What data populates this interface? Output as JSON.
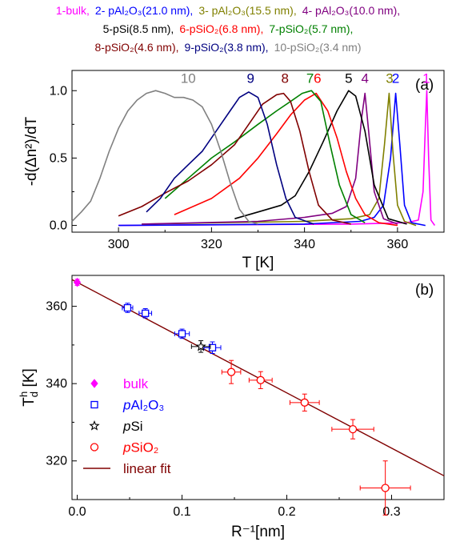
{
  "legend": {
    "lines": [
      [
        {
          "id": "1",
          "label": "1-bulk,",
          "color": "#ff00ff"
        },
        {
          "id": "2",
          "label": "2- pAl₂O₃(21.0 nm),",
          "color": "#0000ff"
        },
        {
          "id": "3",
          "label": "3- pAl₂O₃(15.5 nm),",
          "color": "#808000"
        },
        {
          "id": "4",
          "label": "4- pAl₂O₃(10.0 nm),",
          "color": "#800080"
        }
      ],
      [
        {
          "id": "5",
          "label": "5-pSi(8.5 nm),",
          "color": "#000000"
        },
        {
          "id": "6",
          "label": "6-pSiO₂(6.8 nm),",
          "color": "#ff0000"
        },
        {
          "id": "7",
          "label": "7-pSiO₂(5.7 nm),",
          "color": "#008000"
        }
      ],
      [
        {
          "id": "8",
          "label": "8-pSiO₂(4.6 nm),",
          "color": "#800000"
        },
        {
          "id": "9",
          "label": "9-pSiO₂(3.8 nm),",
          "color": "#000080"
        },
        {
          "id": "10",
          "label": "10-pSiO₂(3.4 nm)",
          "color": "#808080"
        }
      ]
    ]
  },
  "chart_data": [
    {
      "type": "line",
      "panel_label": "(a)",
      "xlabel": "T [K]",
      "ylabel": "-d(Δn²)/dT",
      "xlim": [
        290,
        370
      ],
      "ylim": [
        -0.05,
        1.15
      ],
      "xticks": [
        300,
        320,
        340,
        360
      ],
      "yticks": [
        0.0,
        0.5,
        1.0
      ],
      "series": [
        {
          "name": "1",
          "color": "#ff00ff",
          "peak_label_x": 366.2,
          "x": [
            300,
            350,
            362,
            364.5,
            365.5,
            366,
            366.3,
            366.7,
            367.2,
            368
          ],
          "y": [
            0.0,
            0.01,
            0.02,
            0.04,
            0.25,
            0.75,
            1.0,
            0.5,
            0.04,
            0.0
          ]
        },
        {
          "name": "2",
          "color": "#0000ff",
          "peak_label_x": 359.6,
          "x": [
            300,
            340,
            352,
            355,
            357,
            358.5,
            359.6,
            360.5,
            361.5,
            363,
            366
          ],
          "y": [
            0.0,
            0.01,
            0.03,
            0.06,
            0.15,
            0.5,
            0.98,
            0.6,
            0.15,
            0.02,
            0.0
          ]
        },
        {
          "name": "3",
          "color": "#808000",
          "peak_label_x": 358.3,
          "x": [
            305,
            340,
            350,
            354,
            356,
            357.2,
            358.2,
            359,
            360,
            361.5,
            364
          ],
          "y": [
            0.01,
            0.03,
            0.05,
            0.08,
            0.2,
            0.6,
            0.98,
            0.55,
            0.15,
            0.03,
            0.0
          ]
        },
        {
          "name": "4",
          "color": "#800080",
          "peak_label_x": 353.0,
          "x": [
            305,
            330,
            340,
            346,
            349,
            351,
            352.3,
            353,
            353.8,
            355,
            357,
            360
          ],
          "y": [
            0.01,
            0.03,
            0.06,
            0.09,
            0.14,
            0.35,
            0.8,
            0.98,
            0.7,
            0.25,
            0.05,
            0.01
          ]
        },
        {
          "name": "5",
          "color": "#000000",
          "peak_label_x": 349.5,
          "x": [
            325,
            330,
            335,
            338,
            341,
            344,
            347,
            349.5,
            351,
            353,
            355,
            358,
            362
          ],
          "y": [
            0.05,
            0.1,
            0.15,
            0.22,
            0.4,
            0.62,
            0.85,
            1.0,
            0.96,
            0.7,
            0.3,
            0.05,
            0.01
          ]
        },
        {
          "name": "6",
          "color": "#ff0000",
          "peak_label_x": 342.8,
          "x": [
            312,
            320,
            326,
            330,
            334,
            337,
            340,
            342.5,
            345,
            347,
            349,
            351,
            353,
            356,
            360
          ],
          "y": [
            0.08,
            0.2,
            0.35,
            0.5,
            0.68,
            0.82,
            0.93,
            0.98,
            0.85,
            0.65,
            0.4,
            0.2,
            0.08,
            0.02,
            0.0
          ]
        },
        {
          "name": "7",
          "color": "#008000",
          "peak_label_x": 341.2,
          "x": [
            310,
            315,
            320,
            325,
            330,
            334,
            337,
            339.5,
            341.5,
            343.5,
            345.5,
            347.5,
            350,
            353
          ],
          "y": [
            0.2,
            0.35,
            0.5,
            0.62,
            0.75,
            0.85,
            0.92,
            0.98,
            1.0,
            0.92,
            0.6,
            0.3,
            0.08,
            0.02
          ]
        },
        {
          "name": "8",
          "color": "#800000",
          "peak_label_x": 335.8,
          "x": [
            300,
            305,
            310,
            315,
            320,
            325,
            328,
            331,
            334,
            335.5,
            337,
            339,
            341,
            343,
            346,
            350
          ],
          "y": [
            0.07,
            0.14,
            0.24,
            0.33,
            0.45,
            0.6,
            0.75,
            0.9,
            0.97,
            0.98,
            0.92,
            0.7,
            0.4,
            0.15,
            0.04,
            0.01
          ]
        },
        {
          "name": "9",
          "color": "#000080",
          "peak_label_x": 328.4,
          "x": [
            306,
            309,
            312,
            315,
            318,
            320,
            322,
            324,
            326,
            328,
            330,
            332,
            334,
            336,
            338,
            342
          ],
          "y": [
            0.1,
            0.2,
            0.35,
            0.45,
            0.55,
            0.65,
            0.75,
            0.85,
            0.95,
            0.99,
            0.95,
            0.75,
            0.45,
            0.2,
            0.06,
            0.01
          ]
        },
        {
          "name": "10",
          "color": "#808080",
          "peak_label_x": 315,
          "x": [
            290,
            292,
            294,
            296,
            298,
            300,
            302,
            304,
            306,
            308,
            310,
            312,
            314,
            316,
            318,
            320,
            322,
            324,
            326,
            328,
            330
          ],
          "y": [
            0.03,
            0.1,
            0.18,
            0.35,
            0.55,
            0.72,
            0.85,
            0.93,
            0.98,
            1.0,
            0.98,
            0.95,
            0.95,
            0.93,
            0.88,
            0.75,
            0.55,
            0.32,
            0.12,
            0.03,
            0.01
          ]
        }
      ]
    },
    {
      "type": "scatter",
      "panel_label": "(b)",
      "xlabel": "R⁻¹[nm]",
      "ylabel_main": "T",
      "ylabel_sub": "d",
      "ylabel_sup": "h",
      "ylabel_tail": " [K]",
      "xlim": [
        -0.005,
        0.35
      ],
      "ylim": [
        310,
        368
      ],
      "xticks": [
        0.0,
        0.1,
        0.2,
        0.3
      ],
      "xtick_labels": [
        "0.0",
        "0.1",
        "0.2",
        "0.3"
      ],
      "yticks": [
        320,
        340,
        360
      ],
      "fit": {
        "label": "linear fit",
        "color": "#800000",
        "intercept": 366.2,
        "slope": -143.0
      },
      "series": [
        {
          "name": "bulk",
          "marker": "diamond",
          "color": "#ff00ff",
          "points": [
            {
              "x": 0.0,
              "y": 366.2,
              "ex": 0.0,
              "ey": 0.8
            }
          ]
        },
        {
          "name": "pAl₂O₃",
          "italic_prefix": "p",
          "rest": "Al₂O₃",
          "marker": "square",
          "color": "#0000ff",
          "points": [
            {
              "x": 0.048,
              "y": 359.6,
              "ex": 0.005,
              "ey": 1.2
            },
            {
              "x": 0.065,
              "y": 358.2,
              "ex": 0.006,
              "ey": 1.2
            },
            {
              "x": 0.1,
              "y": 352.9,
              "ex": 0.007,
              "ey": 1.2
            },
            {
              "x": 0.129,
              "y": 349.3,
              "ex": 0.008,
              "ey": 1.5
            }
          ]
        },
        {
          "name": "pSi",
          "italic_prefix": "p",
          "rest": "Si",
          "marker": "star",
          "color": "#000000",
          "points": [
            {
              "x": 0.118,
              "y": 349.6,
              "ex": 0.009,
              "ey": 1.5
            }
          ]
        },
        {
          "name": "pSiO₂",
          "italic_prefix": "p",
          "rest": "SiO₂",
          "marker": "circle",
          "color": "#ff0000",
          "points": [
            {
              "x": 0.147,
              "y": 343.0,
              "ex": 0.009,
              "ey": 3.0
            },
            {
              "x": 0.175,
              "y": 340.9,
              "ex": 0.011,
              "ey": 2.2
            },
            {
              "x": 0.217,
              "y": 335.1,
              "ex": 0.014,
              "ey": 2.2
            },
            {
              "x": 0.263,
              "y": 328.2,
              "ex": 0.02,
              "ey": 2.5
            },
            {
              "x": 0.294,
              "y": 313.0,
              "ex": 0.024,
              "ey": 7.0
            }
          ]
        }
      ],
      "legend_labels": [
        "bulk",
        "pAl₂O₃",
        "pSi",
        "pSiO₂",
        "linear fit"
      ]
    }
  ]
}
